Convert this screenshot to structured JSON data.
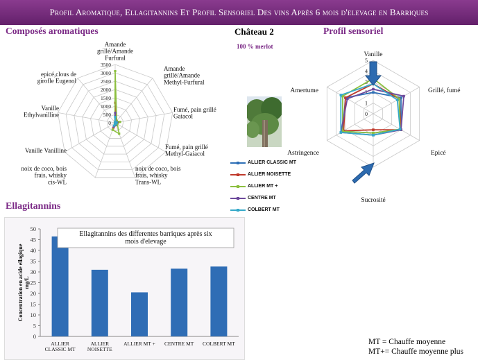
{
  "banner": "Profil Aromatique, Ellagitannins Et Profil Sensoriel Des vins Après 6 mois d'elevage en Barriques",
  "sections": {
    "aroma": "Composés aromatiques",
    "sensory": "Profil sensoriel",
    "ellagi": "Ellagitannins"
  },
  "chateau": "Château 2",
  "variety": "100 % merlot",
  "notes": [
    "MT = Chauffe moyenne",
    "MT+= Chauffe moyenne plus"
  ],
  "colors": {
    "series": [
      "#2e6fb6",
      "#c0392b",
      "#8cbf3f",
      "#6d4a9c",
      "#35a9c9"
    ],
    "bar": "#2f6db5",
    "accent": "#7b2a86"
  },
  "chart_data": [
    {
      "type": "radar",
      "series_names": [
        "ALLIER CLASSIC MT",
        "ALLIER NOISETTE",
        "ALLIER MT +",
        "CENTRE MT",
        "COLBERT MT"
      ],
      "axes": [
        "Amande grillé/Amande Furfural",
        "Amande grillé/Amande Methyl-Furfural",
        "Fumé, pain grillé Gaiacol",
        "Fumé, pain grillé Methyl-Gaiacol",
        "noix de coco, bois frais, whisky Trans-WL",
        "noix de coco, bois frais, whisky cis-WL",
        "Vanille Vanilline",
        "Vanille Ethylvanilline",
        "epicé,clous de girofle Eugenol"
      ],
      "ticks": [
        "0",
        "500",
        "1000",
        "1500",
        "2000",
        "2500",
        "3000",
        "3500"
      ],
      "range": [
        0,
        3500
      ],
      "series": [
        {
          "name": "ALLIER CLASSIC MT",
          "values": [
            400,
            50,
            100,
            60,
            80,
            200,
            10,
            5,
            20
          ]
        },
        {
          "name": "ALLIER NOISETTE",
          "values": [
            1200,
            80,
            150,
            80,
            150,
            350,
            15,
            5,
            25
          ]
        },
        {
          "name": "ALLIER MT +",
          "values": [
            3100,
            150,
            300,
            150,
            700,
            450,
            20,
            5,
            30
          ]
        },
        {
          "name": "CENTRE MT",
          "values": [
            600,
            60,
            120,
            70,
            100,
            250,
            12,
            5,
            22
          ]
        },
        {
          "name": "COLBERT MT",
          "values": [
            350,
            40,
            90,
            50,
            120,
            180,
            10,
            5,
            18
          ]
        }
      ]
    },
    {
      "type": "radar",
      "axes": [
        "Vanille",
        "Grillé, fumé",
        "Epicé",
        "Sucrosité",
        "Astringence",
        "Amertume"
      ],
      "ticks": [
        "0",
        "1",
        "2",
        "3",
        "4",
        "5"
      ],
      "range": [
        0,
        5
      ],
      "series": [
        {
          "name": "ALLIER CLASSIC MT",
          "values": [
            2.0,
            3.0,
            3.0,
            1.8,
            3.3,
            3.0
          ]
        },
        {
          "name": "ALLIER NOISETTE",
          "values": [
            2.8,
            2.8,
            3.0,
            1.5,
            3.2,
            3.0
          ]
        },
        {
          "name": "ALLIER MT +",
          "values": [
            3.3,
            2.8,
            2.9,
            1.8,
            3.3,
            3.3
          ]
        },
        {
          "name": "CENTRE MT",
          "values": [
            2.3,
            3.3,
            3.0,
            2.0,
            3.5,
            2.8
          ]
        },
        {
          "name": "COLBERT MT",
          "values": [
            2.8,
            2.6,
            2.9,
            2.0,
            3.5,
            3.5
          ]
        }
      ]
    },
    {
      "type": "bar",
      "title": "Ellagitannins des differentes barriques après six mois d'elevage",
      "ylabel": "Concentration en acide ellagique mg/L",
      "categories": [
        "ALLIER CLASSIC MT",
        "ALLIER NOISETTE",
        "ALLIER MT +",
        "CENTRE MT",
        "COLBERT MT"
      ],
      "values": [
        46.5,
        31,
        20.5,
        31.5,
        32.5
      ],
      "ylim": [
        0,
        50
      ],
      "ticks": [
        "0",
        "5",
        "10",
        "15",
        "20",
        "25",
        "30",
        "35",
        "40",
        "45",
        "50"
      ]
    }
  ]
}
